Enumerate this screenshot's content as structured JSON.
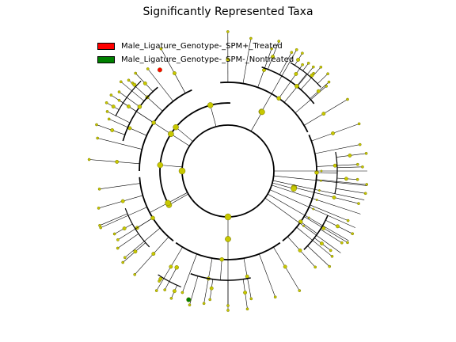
{
  "title": "Significantly Represented Taxa",
  "legend": [
    {
      "label": "Male_Ligature_Genotype-_SPM+_Treated",
      "color": "#ff0000"
    },
    {
      "label": "Male_Ligature_Genotype-_SPM-_Nontreated",
      "color": "#008000"
    }
  ],
  "colors": {
    "default_node": "#c8c800",
    "node_edge": "#777700",
    "treated": "#ff0000",
    "nontreated": "#008000",
    "branch": "#000000"
  }
}
